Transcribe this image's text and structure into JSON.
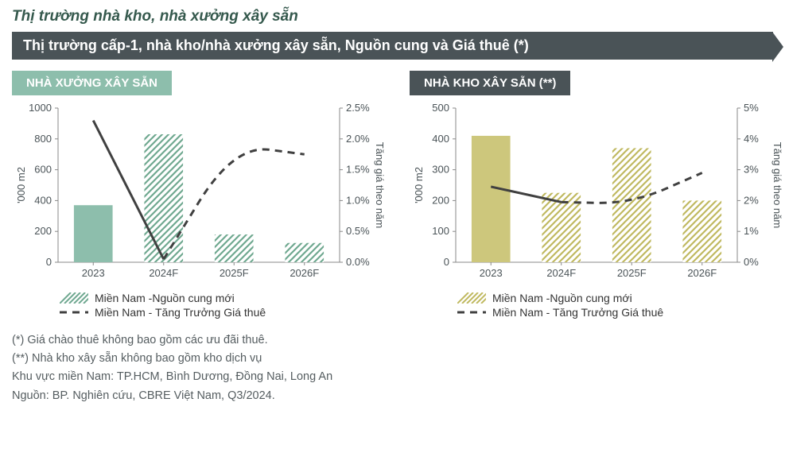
{
  "section_title": "Thị trường nhà kho, nhà xưởng xây sẵn",
  "banner": "Thị trường cấp-1, nhà kho/nhà xưởng xây sẵn, Nguồn cung và Giá thuê (*)",
  "chart_left": {
    "tab_label": "NHÀ XƯỞNG XÂY SẴN",
    "tab_bg": "#8DBEAC",
    "tab_fg": "#FFFFFF",
    "type": "bar+line",
    "categories": [
      "2023",
      "2024F",
      "2025F",
      "2026F"
    ],
    "bar_values": [
      370,
      830,
      180,
      125
    ],
    "bar_solid_first": true,
    "bar_solid_color": "#8DBEAC",
    "bar_hatch_color": "#6FA890",
    "line_values_pct": [
      2.3,
      0.05,
      1.9,
      1.75
    ],
    "line_color": "#404040",
    "line_dash_first_solid": true,
    "y_left_label": "'000 m2",
    "y_left_lim": [
      0,
      1000
    ],
    "y_left_tick_step": 200,
    "y_right_label": "Tăng giá theo năm",
    "y_right_lim": [
      0.0,
      2.5
    ],
    "y_right_tick_step": 0.5,
    "y_right_suffix": "%",
    "y_right_decimals": 1,
    "legend": {
      "bar": "Miền Nam -Nguồn cung mới",
      "line": "Miền Nam - Tăng Trưởng Giá thuê"
    },
    "axis_color": "#888888",
    "text_color": "#4A5357",
    "font_size_axis": 13,
    "font_size_label": 13
  },
  "chart_right": {
    "tab_label": "NHÀ KHO XÂY SẴN (**)",
    "tab_bg": "#4A5357",
    "tab_fg": "#FFFFFF",
    "type": "bar+line",
    "categories": [
      "2023",
      "2024F",
      "2025F",
      "2026F"
    ],
    "bar_values": [
      410,
      225,
      370,
      200
    ],
    "bar_solid_first": true,
    "bar_solid_color": "#CDC77C",
    "bar_hatch_color": "#C0B960",
    "line_values_pct": [
      2.45,
      1.95,
      1.9,
      2.9
    ],
    "line_color": "#404040",
    "line_dash_first_solid": true,
    "y_left_label": "'000 m2",
    "y_left_lim": [
      0,
      500
    ],
    "y_left_tick_step": 100,
    "y_right_label": "Tăng giá theo năm",
    "y_right_lim": [
      0,
      5
    ],
    "y_right_tick_step": 1,
    "y_right_suffix": "%",
    "y_right_decimals": 0,
    "legend": {
      "bar": "Miền Nam -Nguồn cung mới",
      "line": "Miền Nam - Tăng Trưởng Giá thuê"
    },
    "axis_color": "#888888",
    "text_color": "#4A5357",
    "font_size_axis": 13,
    "font_size_label": 13
  },
  "footnotes": [
    "(*) Giá chào thuê không bao gồm các ưu đãi thuê.",
    "(**) Nhà kho xây sẵn không bao gồm kho dịch vụ",
    "Khu vực miền Nam: TP.HCM, Bình Dương, Đồng Nai, Long An",
    "Nguồn: BP. Nghiên cứu, CBRE Việt Nam, Q3/2024."
  ]
}
